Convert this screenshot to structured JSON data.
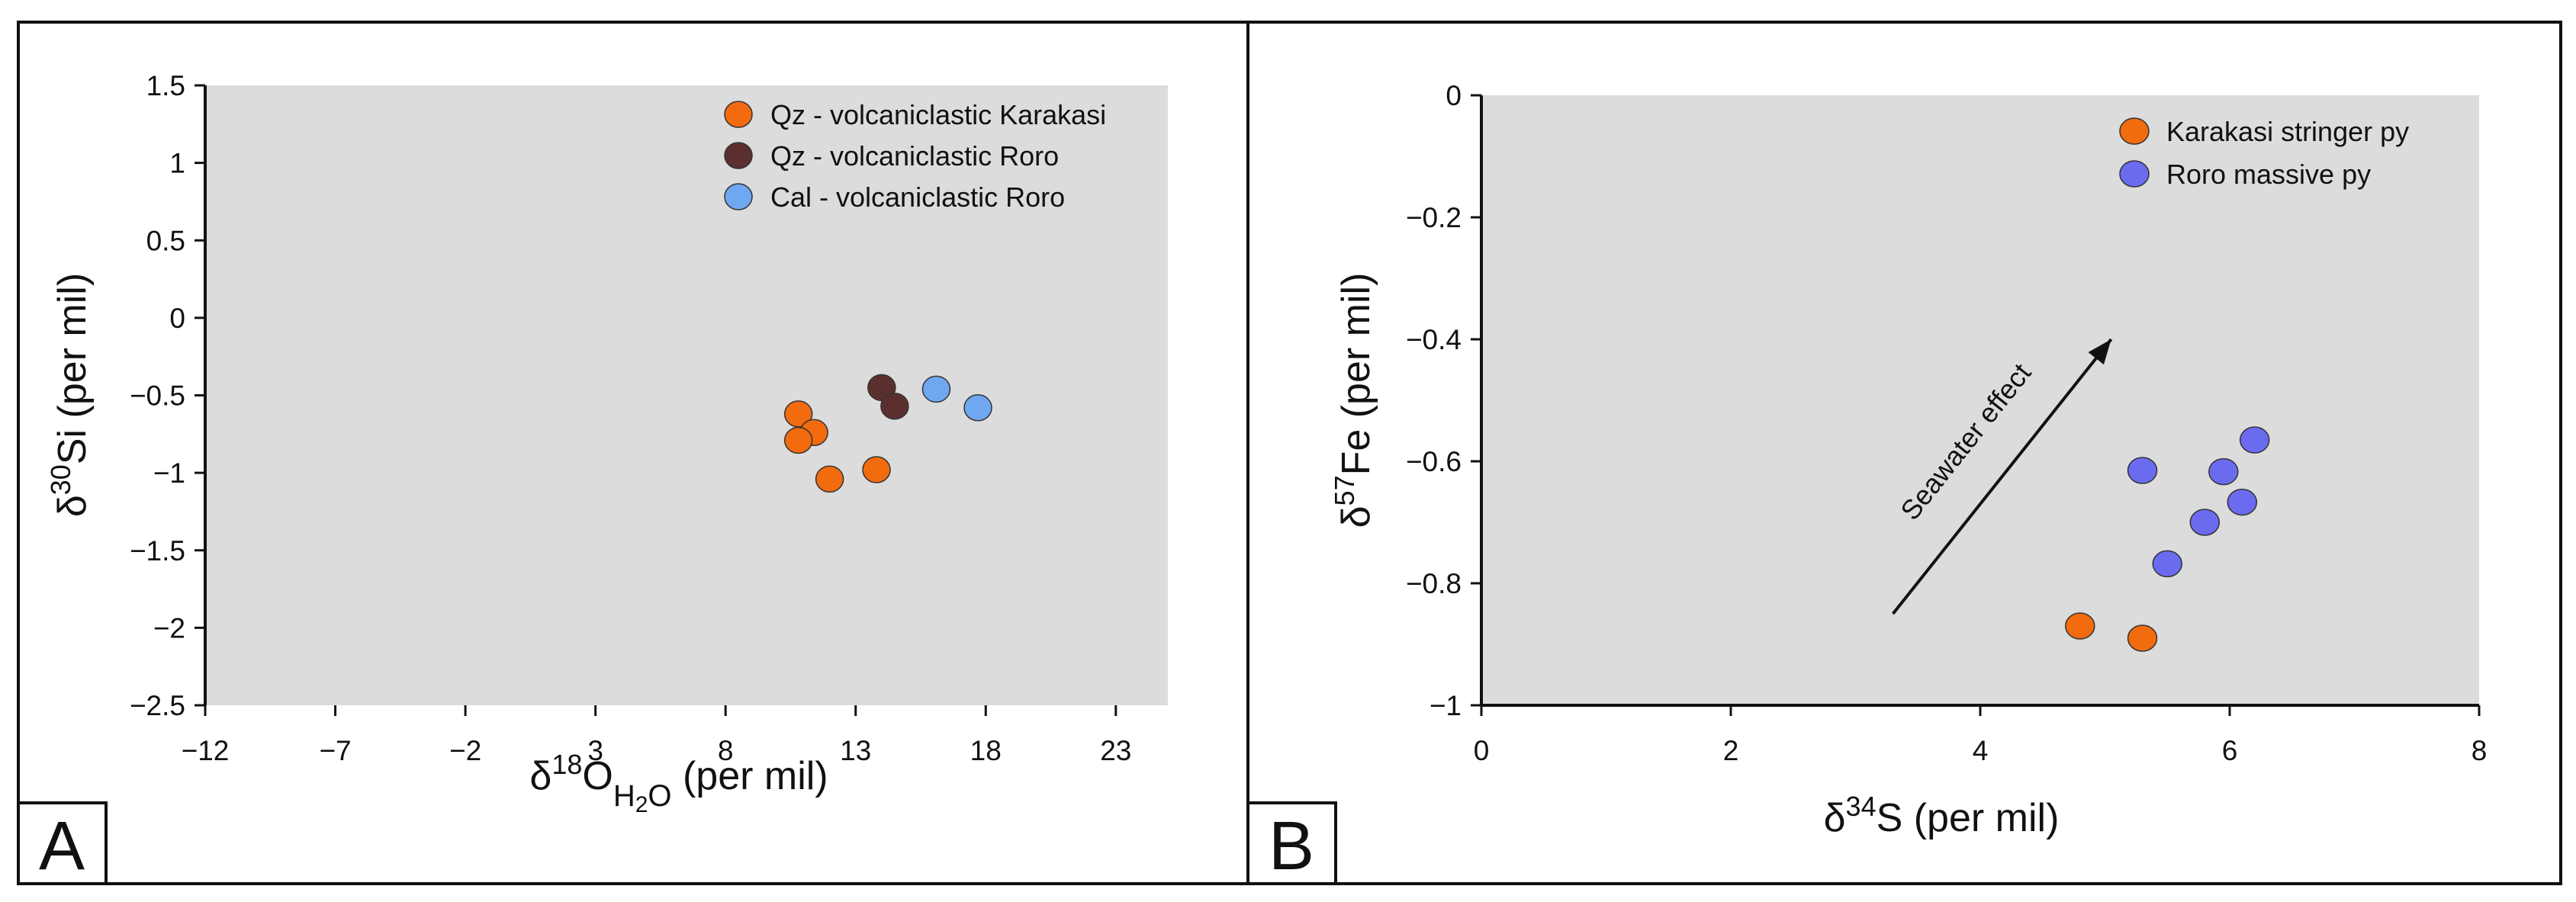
{
  "figure": {
    "panel_a_letter": "A",
    "panel_b_letter": "B"
  },
  "chart_data": [
    {
      "type": "scatter",
      "panel": "A",
      "xlabel": {
        "prefix": "δ",
        "sup": "18",
        "main": "O",
        "sub": "H",
        "sub2": "2",
        "tail": "O (per mil)"
      },
      "ylabel": {
        "prefix": "δ",
        "sup": "30",
        "tail": "Si (per mil)"
      },
      "xlim": [
        -12,
        25
      ],
      "ylim": [
        -2.5,
        1.5
      ],
      "xticks": [
        -12,
        -7,
        -2,
        3,
        8,
        13,
        18,
        23
      ],
      "xtick_labels": [
        "−12",
        "−7",
        "−2",
        "3",
        "8",
        "13",
        "18",
        "23"
      ],
      "yticks": [
        1.5,
        1,
        0.5,
        0,
        -0.5,
        -1,
        -1.5,
        -2,
        -2.5
      ],
      "ytick_labels": [
        "1.5",
        "1",
        "0.5",
        "0",
        "−0.5",
        "−1",
        "−1.5",
        "−2",
        "−2.5"
      ],
      "legend_position": "top-right",
      "series": [
        {
          "name": "Qz - volcaniclastic Karakasi",
          "color": "#f26b0f",
          "points": [
            [
              10.8,
              -0.62
            ],
            [
              11.4,
              -0.74
            ],
            [
              10.8,
              -0.79
            ],
            [
              12.0,
              -1.04
            ],
            [
              13.8,
              -0.98
            ]
          ]
        },
        {
          "name": "Qz - volcaniclastic Roro",
          "color": "#5c2f2f",
          "points": [
            [
              14.0,
              -0.45
            ],
            [
              14.5,
              -0.57
            ]
          ]
        },
        {
          "name": "Cal - volcaniclastic Roro",
          "color": "#6fa8f0",
          "points": [
            [
              16.1,
              -0.46
            ],
            [
              17.7,
              -0.58
            ]
          ]
        }
      ]
    },
    {
      "type": "scatter",
      "panel": "B",
      "xlabel": {
        "prefix": "δ",
        "sup": "34",
        "tail": "S (per mil)"
      },
      "ylabel": {
        "prefix": "δ",
        "sup": "57",
        "tail": "Fe (per mil)"
      },
      "xlim": [
        0,
        8
      ],
      "ylim": [
        -1,
        0
      ],
      "xticks": [
        0,
        2,
        4,
        6,
        8
      ],
      "xtick_labels": [
        "0",
        "2",
        "4",
        "6",
        "8"
      ],
      "yticks": [
        0,
        -0.2,
        -0.4,
        -0.6,
        -0.8,
        -1
      ],
      "ytick_labels": [
        "0",
        "−0.2",
        "−0.4",
        "−0.6",
        "−0.8",
        "−1"
      ],
      "legend_position": "top-right",
      "annotation": {
        "text": "Seawater effect",
        "from": [
          3.3,
          -0.85
        ],
        "to": [
          5.05,
          -0.4
        ]
      },
      "series": [
        {
          "name": "Karakasi stringer py",
          "color": "#f26b0f",
          "points": [
            [
              4.8,
              -0.87
            ],
            [
              5.3,
              -0.89
            ]
          ]
        },
        {
          "name": "Roro massive py",
          "color": "#6b6bf0",
          "points": [
            [
              5.3,
              -0.615
            ],
            [
              6.2,
              -0.565
            ],
            [
              5.95,
              -0.617
            ],
            [
              6.1,
              -0.667
            ],
            [
              5.8,
              -0.7
            ],
            [
              5.5,
              -0.768
            ]
          ]
        }
      ]
    }
  ]
}
